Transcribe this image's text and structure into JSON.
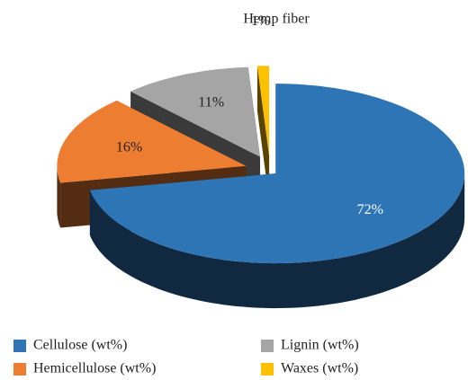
{
  "chart_data": {
    "type": "pie",
    "title": "Hemp fiber",
    "categories": [
      "Cellulose (wt%)",
      "Hemicellulose (wt%)",
      "Lignin (wt%)",
      "Waxes (wt%)"
    ],
    "values": [
      72,
      16,
      11,
      1
    ],
    "value_labels": [
      "72%",
      "16%",
      "11%",
      "1%"
    ],
    "colors": [
      "#2e75b6",
      "#ed7d31",
      "#a5a5a5",
      "#ffc000"
    ],
    "legend": "bottom"
  }
}
